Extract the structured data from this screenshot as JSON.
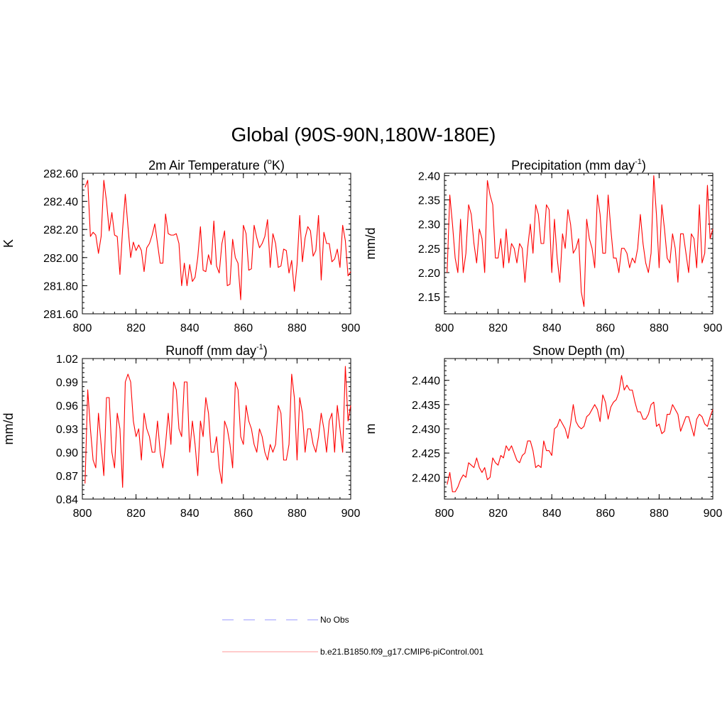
{
  "figure_title": "Global (90S-90N,180W-180E)",
  "colors": {
    "series": "#ff0000",
    "obs": "#9999ff",
    "axis": "#000000"
  },
  "legend": {
    "obs_label": "No Obs",
    "model_label": "b.e21.B1850.f09_g17.CMIP6-piControl.001"
  },
  "chart_data": [
    {
      "type": "line",
      "title": "2m Air Temperature (°K)",
      "xlabel": "",
      "ylabel": "K",
      "xlim": [
        800,
        900
      ],
      "ylim": [
        281.6,
        282.6
      ],
      "xticks": [
        "800",
        "820",
        "840",
        "860",
        "880",
        "900"
      ],
      "yticks": [
        "281.60",
        "281.80",
        "282.00",
        "282.20",
        "282.40",
        "282.60"
      ],
      "series": [
        {
          "name": "b.e21.B1850.f09_g17.CMIP6-piControl.001",
          "x_start": 801,
          "values": [
            282.5,
            282.55,
            282.15,
            282.18,
            282.16,
            282.03,
            282.15,
            282.55,
            282.4,
            282.19,
            282.32,
            282.16,
            282.15,
            281.88,
            282.2,
            282.45,
            282.22,
            282.0,
            282.11,
            282.05,
            282.09,
            282.05,
            281.9,
            282.07,
            282.1,
            282.16,
            282.24,
            282.1,
            281.96,
            281.96,
            282.31,
            282.17,
            282.16,
            282.16,
            282.17,
            282.1,
            281.8,
            281.96,
            281.8,
            281.95,
            281.83,
            281.86,
            282.0,
            282.22,
            281.91,
            281.9,
            282.02,
            281.95,
            282.26,
            281.94,
            281.89,
            282.1,
            282.19,
            281.8,
            281.81,
            282.13,
            282.0,
            281.96,
            281.7,
            282.23,
            282.17,
            281.91,
            281.92,
            282.23,
            282.14,
            282.07,
            282.1,
            282.15,
            282.27,
            281.93,
            282.17,
            282.1,
            281.93,
            281.94,
            282.06,
            282.05,
            281.89,
            281.98,
            281.76,
            281.95,
            282.3,
            281.97,
            282.14,
            282.22,
            282.19,
            282.01,
            282.05,
            282.3,
            281.84,
            282.18,
            282.1,
            282.1,
            281.97,
            281.99,
            282.06,
            281.93,
            282.23,
            282.12,
            281.87,
            281.9
          ]
        }
      ]
    },
    {
      "type": "line",
      "title": "Precipitation (mm day-1)",
      "xlabel": "",
      "ylabel": "mm/d",
      "xlim": [
        800,
        900
      ],
      "ylim": [
        2.115,
        2.405
      ],
      "xticks": [
        "800",
        "820",
        "840",
        "860",
        "880",
        "900"
      ],
      "yticks": [
        "2.15",
        "2.20",
        "2.25",
        "2.30",
        "2.35",
        "2.40"
      ],
      "series": [
        {
          "name": "b.e21.B1850.f09_g17.CMIP6-piControl.001",
          "x_start": 801,
          "values": [
            2.2,
            2.36,
            2.3,
            2.23,
            2.2,
            2.31,
            2.2,
            2.24,
            2.34,
            2.32,
            2.26,
            2.22,
            2.29,
            2.27,
            2.2,
            2.39,
            2.36,
            2.34,
            2.23,
            2.23,
            2.27,
            2.21,
            2.29,
            2.22,
            2.26,
            2.25,
            2.22,
            2.26,
            2.25,
            2.18,
            2.25,
            2.3,
            2.24,
            2.34,
            2.32,
            2.26,
            2.26,
            2.34,
            2.33,
            2.2,
            2.31,
            2.23,
            2.18,
            2.28,
            2.25,
            2.33,
            2.3,
            2.24,
            2.25,
            2.27,
            2.16,
            2.13,
            2.31,
            2.27,
            2.25,
            2.21,
            2.36,
            2.32,
            2.24,
            2.24,
            2.36,
            2.29,
            2.23,
            2.23,
            2.2,
            2.25,
            2.25,
            2.24,
            2.21,
            2.23,
            2.22,
            2.25,
            2.32,
            2.26,
            2.22,
            2.2,
            2.24,
            2.4,
            2.32,
            2.21,
            2.34,
            2.29,
            2.23,
            2.22,
            2.28,
            2.25,
            2.18,
            2.28,
            2.28,
            2.24,
            2.2,
            2.28,
            2.27,
            2.21,
            2.34,
            2.22,
            2.24,
            2.38,
            2.27,
            2.29
          ]
        }
      ]
    },
    {
      "type": "line",
      "title": "Runoff (mm day-1)",
      "xlabel": "",
      "ylabel": "mm/d",
      "xlim": [
        800,
        900
      ],
      "ylim": [
        0.84,
        1.02
      ],
      "xticks": [
        "800",
        "820",
        "840",
        "860",
        "880",
        "900"
      ],
      "yticks": [
        "0.84",
        "0.87",
        "0.90",
        "0.93",
        "0.96",
        "0.99",
        "1.02"
      ],
      "series": [
        {
          "name": "b.e21.B1850.f09_g17.CMIP6-piControl.001",
          "x_start": 801,
          "values": [
            0.86,
            0.98,
            0.93,
            0.89,
            0.88,
            0.95,
            0.91,
            0.87,
            0.97,
            0.97,
            0.9,
            0.88,
            0.95,
            0.93,
            0.855,
            0.99,
            1.0,
            0.99,
            0.94,
            0.92,
            0.93,
            0.89,
            0.95,
            0.93,
            0.92,
            0.9,
            0.9,
            0.94,
            0.9,
            0.88,
            0.91,
            0.95,
            0.91,
            0.99,
            0.98,
            0.93,
            0.92,
            0.99,
            0.99,
            0.9,
            0.94,
            0.91,
            0.87,
            0.94,
            0.92,
            0.97,
            0.95,
            0.9,
            0.9,
            0.92,
            0.88,
            0.86,
            0.94,
            0.93,
            0.91,
            0.88,
            0.99,
            0.98,
            0.92,
            0.91,
            0.96,
            0.94,
            0.93,
            0.91,
            0.9,
            0.93,
            0.92,
            0.9,
            0.89,
            0.91,
            0.9,
            0.91,
            0.96,
            0.95,
            0.89,
            0.89,
            0.91,
            1.0,
            0.97,
            0.89,
            0.97,
            0.95,
            0.9,
            0.93,
            0.93,
            0.91,
            0.9,
            0.92,
            0.95,
            0.93,
            0.9,
            0.94,
            0.95,
            0.9,
            0.96,
            0.93,
            0.9,
            1.01,
            0.94,
            0.96
          ]
        }
      ]
    },
    {
      "type": "line",
      "title": "Snow Depth (m)",
      "xlabel": "",
      "ylabel": "m",
      "xlim": [
        800,
        900
      ],
      "ylim": [
        2.4155,
        2.4445
      ],
      "xticks": [
        "800",
        "820",
        "840",
        "860",
        "880",
        "900"
      ],
      "yticks": [
        "2.420",
        "2.425",
        "2.430",
        "2.435",
        "2.440"
      ],
      "series": [
        {
          "name": "b.e21.B1850.f09_g17.CMIP6-piControl.001",
          "x_start": 801,
          "values": [
            2.4185,
            2.421,
            2.417,
            2.417,
            2.418,
            2.4195,
            2.4205,
            2.42,
            2.423,
            2.4225,
            2.422,
            2.424,
            2.422,
            2.421,
            2.422,
            2.4195,
            2.42,
            2.424,
            2.423,
            2.4225,
            2.4245,
            2.424,
            2.4265,
            2.4255,
            2.4265,
            2.425,
            2.4235,
            2.423,
            2.4245,
            2.425,
            2.4275,
            2.4275,
            2.4255,
            2.422,
            2.4225,
            2.422,
            2.4275,
            2.4255,
            2.4255,
            2.4245,
            2.43,
            2.4305,
            2.432,
            2.431,
            2.43,
            2.428,
            2.431,
            2.435,
            2.4315,
            2.4305,
            2.43,
            2.4305,
            2.4325,
            2.433,
            2.434,
            2.435,
            2.434,
            2.4315,
            2.437,
            2.4355,
            2.432,
            2.4345,
            2.4355,
            2.436,
            2.4375,
            2.441,
            2.438,
            2.439,
            2.438,
            2.438,
            2.4355,
            2.4335,
            2.4335,
            2.432,
            2.432,
            2.433,
            2.435,
            2.4355,
            2.4305,
            2.431,
            2.429,
            2.4295,
            2.433,
            2.433,
            2.435,
            2.434,
            2.433,
            2.4295,
            2.431,
            2.4325,
            2.4325,
            2.4305,
            2.4285,
            2.432,
            2.433,
            2.4325,
            2.431,
            2.4305,
            2.4325,
            2.434
          ]
        }
      ]
    }
  ]
}
